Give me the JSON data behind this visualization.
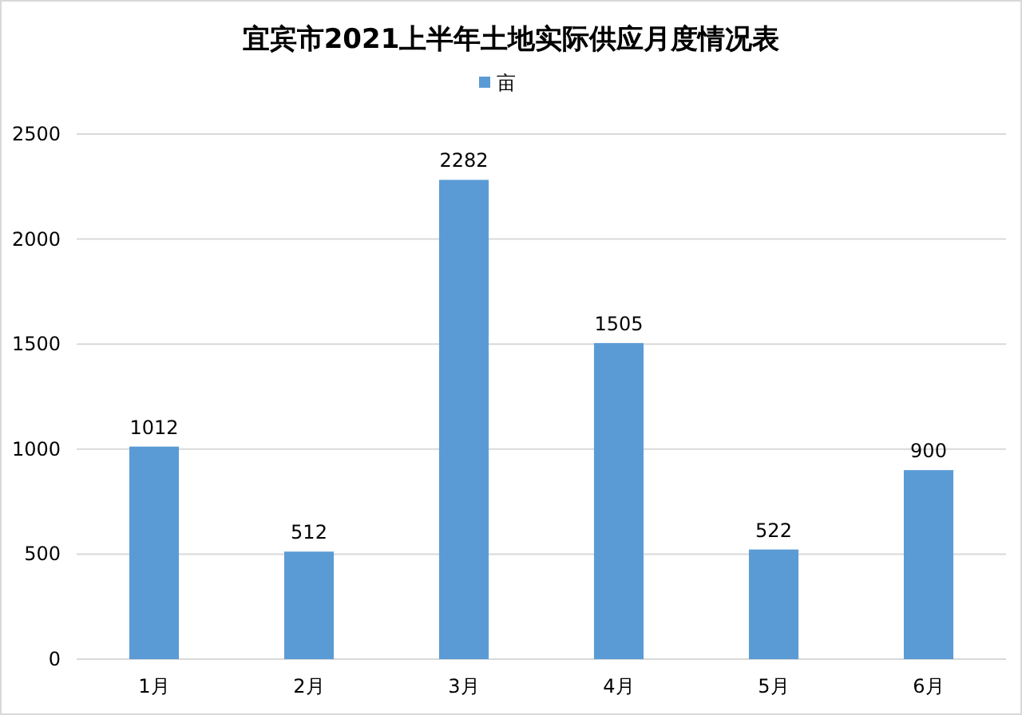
{
  "chart_data": {
    "type": "bar",
    "title": "宜宾市2021上半年土地实际供应月度情况表",
    "categories": [
      "1月",
      "2月",
      "3月",
      "4月",
      "5月",
      "6月"
    ],
    "series": [
      {
        "name": "亩",
        "color": "#5b9bd5",
        "values": [
          1012,
          512,
          2282,
          1505,
          522,
          900
        ]
      }
    ],
    "ylim": [
      0,
      2500
    ],
    "yticks": [
      0,
      500,
      1000,
      1500,
      2000,
      2500
    ],
    "grid": "y",
    "legend": "top",
    "data_labels": true
  }
}
